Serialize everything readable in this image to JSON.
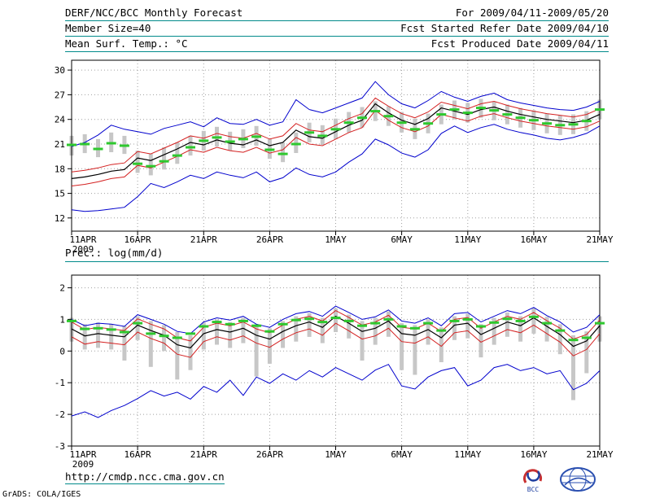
{
  "header": {
    "title": "DERF/NCC/BCC Monthly Forecast",
    "member_size": "Member Size=40",
    "for_range": "For 2009/04/11-2009/05/20",
    "refer_date": "Fcst Started Refer Date 2009/04/10",
    "produced_date": "Fcst Produced Date 2009/04/11"
  },
  "footer": {
    "url": "http://cmdp.ncc.cma.gov.cn",
    "credit": "GrADS: COLA/IGES",
    "bcc_logo_text": "BCC"
  },
  "colors": {
    "rule": "#008a8a",
    "envelope": "#0000cd",
    "quartile": "#d42020",
    "mean": "#000000",
    "obs_dash": "#2ec82e",
    "spread_bar": "#c7c7c7"
  },
  "chart_data": [
    {
      "type": "line",
      "title": "Mean Surf. Temp.: °C",
      "xlabel": "",
      "ylabel": "",
      "xlim": [
        0,
        40
      ],
      "ylim": [
        10.4,
        31.2
      ],
      "yticks": [
        12,
        15,
        18,
        21,
        24,
        27,
        30
      ],
      "grid": "dotted",
      "legend": "none",
      "xticks": [
        {
          "x": 0,
          "label": "11APR",
          "sublabel": "2009"
        },
        {
          "x": 5,
          "label": "16APR"
        },
        {
          "x": 10,
          "label": "21APR"
        },
        {
          "x": 15,
          "label": "26APR"
        },
        {
          "x": 20,
          "label": "1MAY"
        },
        {
          "x": 25,
          "label": "6MAY"
        },
        {
          "x": 30,
          "label": "11MAY"
        },
        {
          "x": 35,
          "label": "16MAY"
        },
        {
          "x": 40,
          "label": "21MAY"
        }
      ],
      "bars": {
        "name": "ensemble-spread",
        "color": "#c7c7c7",
        "low": [
          19.6,
          19.9,
          19.4,
          20.0,
          19.8,
          17.5,
          17.2,
          17.9,
          18.6,
          19.6,
          20.2,
          20.7,
          20.2,
          20.5,
          20.8,
          19.2,
          18.8,
          19.9,
          21.2,
          20.9,
          21.6,
          22.4,
          23.0,
          23.8,
          23.2,
          22.4,
          21.6,
          22.3,
          23.4,
          24.0,
          23.6,
          24.2,
          23.9,
          23.4,
          23.0,
          22.7,
          22.3,
          22.1,
          22.2,
          22.6,
          24.0
        ],
        "high": [
          22.0,
          22.2,
          21.6,
          22.4,
          22.0,
          20.2,
          19.8,
          20.6,
          21.2,
          22.0,
          22.6,
          23.1,
          22.5,
          22.8,
          23.2,
          21.6,
          21.2,
          22.4,
          23.6,
          23.3,
          24.1,
          24.9,
          25.5,
          26.2,
          25.6,
          24.9,
          24.1,
          24.7,
          25.8,
          26.3,
          26.0,
          26.5,
          26.2,
          25.8,
          25.4,
          25.1,
          24.7,
          24.5,
          24.6,
          25.0,
          26.4
        ]
      },
      "series": [
        {
          "name": "ensemble-max",
          "color": "#0000cd",
          "style": "line",
          "width": 1,
          "values": [
            20.7,
            21.2,
            22.1,
            23.3,
            22.8,
            22.5,
            22.2,
            22.9,
            23.3,
            23.7,
            23.1,
            24.2,
            23.5,
            23.4,
            24.0,
            23.3,
            23.7,
            26.4,
            25.2,
            24.8,
            25.4,
            26.0,
            26.6,
            28.6,
            27.0,
            25.9,
            25.4,
            26.3,
            27.4,
            26.7,
            26.2,
            26.8,
            27.2,
            26.4,
            26.0,
            25.7,
            25.4,
            25.2,
            25.1,
            25.5,
            26.2
          ]
        },
        {
          "name": "ensemble-min",
          "color": "#0000cd",
          "style": "line",
          "width": 1,
          "values": [
            13.0,
            12.8,
            12.9,
            13.1,
            13.3,
            14.6,
            16.2,
            15.7,
            16.4,
            17.2,
            16.8,
            17.6,
            17.2,
            16.9,
            17.6,
            16.4,
            16.9,
            18.1,
            17.3,
            17.0,
            17.6,
            18.8,
            19.8,
            21.6,
            20.9,
            19.9,
            19.4,
            20.3,
            22.3,
            23.2,
            22.4,
            23.0,
            23.4,
            22.8,
            22.4,
            22.1,
            21.7,
            21.5,
            21.8,
            22.3,
            23.2
          ]
        },
        {
          "name": "upper-quartile",
          "color": "#d42020",
          "style": "line",
          "width": 1,
          "values": [
            17.6,
            17.8,
            18.1,
            18.5,
            18.7,
            20.1,
            19.8,
            20.5,
            21.2,
            22.0,
            21.7,
            22.3,
            21.9,
            21.7,
            22.3,
            21.6,
            22.0,
            23.5,
            22.7,
            22.5,
            23.3,
            24.1,
            24.7,
            26.6,
            25.6,
            24.7,
            24.2,
            24.9,
            26.1,
            25.7,
            25.3,
            25.9,
            26.2,
            25.7,
            25.3,
            25.0,
            24.7,
            24.5,
            24.3,
            24.6,
            25.3
          ]
        },
        {
          "name": "lower-quartile",
          "color": "#d42020",
          "style": "line",
          "width": 1,
          "values": [
            15.9,
            16.1,
            16.4,
            16.8,
            17.0,
            18.4,
            18.1,
            18.8,
            19.5,
            20.3,
            20.0,
            20.6,
            20.2,
            20.0,
            20.6,
            19.9,
            20.3,
            21.8,
            21.0,
            20.8,
            21.6,
            22.4,
            23.0,
            25.1,
            23.9,
            23.0,
            22.5,
            23.2,
            24.6,
            24.2,
            23.8,
            24.4,
            24.7,
            24.2,
            23.8,
            23.5,
            23.2,
            23.0,
            22.8,
            23.1,
            23.8
          ]
        },
        {
          "name": "ensemble-mean",
          "color": "#000000",
          "style": "line",
          "width": 1.2,
          "values": [
            16.8,
            17.0,
            17.3,
            17.7,
            17.9,
            19.3,
            19.0,
            19.7,
            20.4,
            21.2,
            20.9,
            21.5,
            21.1,
            20.9,
            21.5,
            20.8,
            21.2,
            22.7,
            21.9,
            21.7,
            22.5,
            23.3,
            23.9,
            25.9,
            24.8,
            23.9,
            23.4,
            24.1,
            25.4,
            25.0,
            24.6,
            25.2,
            25.5,
            25.0,
            24.6,
            24.3,
            24.0,
            23.8,
            23.6,
            23.9,
            24.6
          ]
        },
        {
          "name": "observation-dashes",
          "color": "#2ec82e",
          "style": "dash",
          "width": 3,
          "values": [
            20.9,
            21.0,
            20.4,
            21.1,
            20.8,
            18.6,
            18.3,
            18.9,
            19.6,
            20.6,
            21.4,
            21.8,
            21.3,
            21.6,
            21.9,
            20.3,
            19.8,
            21.0,
            22.4,
            22.0,
            22.8,
            23.6,
            24.2,
            25.0,
            24.4,
            23.6,
            22.8,
            23.5,
            24.6,
            25.2,
            24.8,
            25.4,
            25.1,
            24.6,
            24.2,
            23.9,
            23.5,
            23.3,
            23.4,
            23.8,
            25.2
          ]
        }
      ]
    },
    {
      "type": "line",
      "title": "Prec.: log(mm/d)",
      "xlabel": "",
      "ylabel": "",
      "xlim": [
        0,
        40
      ],
      "ylim": [
        -3,
        2.4
      ],
      "yticks": [
        -3,
        -2,
        -1,
        0,
        1,
        2
      ],
      "grid": "dotted",
      "legend": "none",
      "xticks": [
        {
          "x": 0,
          "label": "11APR",
          "sublabel": "2009"
        },
        {
          "x": 5,
          "label": "16APR"
        },
        {
          "x": 10,
          "label": "21APR"
        },
        {
          "x": 15,
          "label": "26APR"
        },
        {
          "x": 20,
          "label": "1MAY"
        },
        {
          "x": 25,
          "label": "6MAY"
        },
        {
          "x": 30,
          "label": "11MAY"
        },
        {
          "x": 35,
          "label": "16MAY"
        },
        {
          "x": 40,
          "label": "21MAY"
        }
      ],
      "bars": {
        "name": "ensemble-spread",
        "color": "#c7c7c7",
        "low": [
          0.3,
          0.05,
          0.1,
          0.05,
          -0.3,
          0.35,
          -0.5,
          0.0,
          -0.9,
          -0.6,
          0.05,
          0.2,
          0.1,
          0.25,
          -0.8,
          -0.4,
          0.1,
          0.3,
          0.45,
          0.25,
          0.6,
          0.4,
          -0.3,
          0.2,
          0.45,
          -0.6,
          -0.75,
          0.2,
          -0.35,
          0.35,
          0.4,
          -0.2,
          0.2,
          0.45,
          0.3,
          0.55,
          0.3,
          -0.1,
          -1.55,
          -0.7,
          0.3
        ],
        "high": [
          1.05,
          0.85,
          0.9,
          0.85,
          0.8,
          1.1,
          0.95,
          0.82,
          0.6,
          0.5,
          0.9,
          1.0,
          0.92,
          1.05,
          0.85,
          0.72,
          0.95,
          1.1,
          1.2,
          1.05,
          1.35,
          1.15,
          0.95,
          1.05,
          1.25,
          0.88,
          0.82,
          1.0,
          0.75,
          1.1,
          1.18,
          0.85,
          1.05,
          1.22,
          1.1,
          1.35,
          1.08,
          0.85,
          0.5,
          0.62,
          1.1
        ]
      },
      "series": [
        {
          "name": "ensemble-max",
          "color": "#0000cd",
          "style": "line",
          "width": 1,
          "values": [
            1.0,
            0.8,
            0.88,
            0.85,
            0.78,
            1.15,
            1.0,
            0.85,
            0.62,
            0.55,
            0.92,
            1.05,
            0.98,
            1.1,
            0.85,
            0.75,
            1.0,
            1.18,
            1.25,
            1.1,
            1.42,
            1.22,
            1.0,
            1.08,
            1.3,
            0.95,
            0.88,
            1.05,
            0.8,
            1.18,
            1.22,
            0.92,
            1.1,
            1.28,
            1.18,
            1.38,
            1.12,
            0.92,
            0.6,
            0.75,
            1.15
          ]
        },
        {
          "name": "ensemble-min",
          "color": "#0000cd",
          "style": "line",
          "width": 1,
          "values": [
            -2.05,
            -1.92,
            -2.1,
            -1.88,
            -1.72,
            -1.5,
            -1.25,
            -1.42,
            -1.3,
            -1.52,
            -1.12,
            -1.3,
            -0.92,
            -1.4,
            -0.82,
            -1.02,
            -0.72,
            -0.92,
            -0.62,
            -0.82,
            -0.52,
            -0.72,
            -0.92,
            -0.6,
            -0.42,
            -1.1,
            -1.2,
            -0.82,
            -0.62,
            -0.52,
            -1.1,
            -0.92,
            -0.52,
            -0.42,
            -0.62,
            -0.52,
            -0.72,
            -0.62,
            -1.22,
            -1.02,
            -0.62
          ]
        },
        {
          "name": "upper-quartile",
          "color": "#d42020",
          "style": "line",
          "width": 1,
          "values": [
            0.92,
            0.68,
            0.75,
            0.7,
            0.65,
            1.02,
            0.85,
            0.7,
            0.42,
            0.32,
            0.75,
            0.88,
            0.8,
            0.92,
            0.7,
            0.58,
            0.82,
            1.0,
            1.1,
            0.95,
            1.28,
            1.06,
            0.82,
            0.92,
            1.13,
            0.75,
            0.7,
            0.88,
            0.62,
            1.0,
            1.06,
            0.72,
            0.92,
            1.1,
            1.0,
            1.22,
            0.96,
            0.72,
            0.38,
            0.52,
            0.98
          ]
        },
        {
          "name": "lower-quartile",
          "color": "#d42020",
          "style": "line",
          "width": 1,
          "values": [
            0.45,
            0.22,
            0.3,
            0.25,
            0.2,
            0.6,
            0.4,
            0.25,
            -0.1,
            -0.2,
            0.3,
            0.45,
            0.35,
            0.48,
            0.25,
            0.12,
            0.38,
            0.58,
            0.7,
            0.5,
            0.88,
            0.64,
            0.38,
            0.48,
            0.72,
            0.3,
            0.25,
            0.45,
            0.15,
            0.58,
            0.64,
            0.28,
            0.48,
            0.68,
            0.58,
            0.82,
            0.55,
            0.28,
            -0.15,
            0.05,
            0.55
          ]
        },
        {
          "name": "ensemble-mean",
          "color": "#000000",
          "style": "line",
          "width": 1.2,
          "values": [
            0.7,
            0.48,
            0.55,
            0.5,
            0.45,
            0.82,
            0.65,
            0.5,
            0.2,
            0.1,
            0.55,
            0.68,
            0.6,
            0.72,
            0.5,
            0.38,
            0.62,
            0.8,
            0.92,
            0.75,
            1.1,
            0.88,
            0.62,
            0.72,
            0.95,
            0.55,
            0.5,
            0.68,
            0.42,
            0.82,
            0.88,
            0.52,
            0.72,
            0.92,
            0.8,
            1.05,
            0.78,
            0.52,
            0.15,
            0.32,
            0.8
          ]
        },
        {
          "name": "observation-dashes",
          "color": "#2ec82e",
          "style": "dash",
          "width": 3,
          "values": [
            0.95,
            0.7,
            0.72,
            0.68,
            0.6,
            0.88,
            0.55,
            0.48,
            0.42,
            0.55,
            0.78,
            0.92,
            0.85,
            0.95,
            0.8,
            0.62,
            0.85,
            0.98,
            1.02,
            0.92,
            1.05,
            0.95,
            0.8,
            0.88,
            1.0,
            0.78,
            0.72,
            0.88,
            0.65,
            0.95,
            1.0,
            0.78,
            0.9,
            1.02,
            0.95,
            1.08,
            0.88,
            0.65,
            0.35,
            0.42,
            0.88
          ]
        }
      ]
    }
  ]
}
